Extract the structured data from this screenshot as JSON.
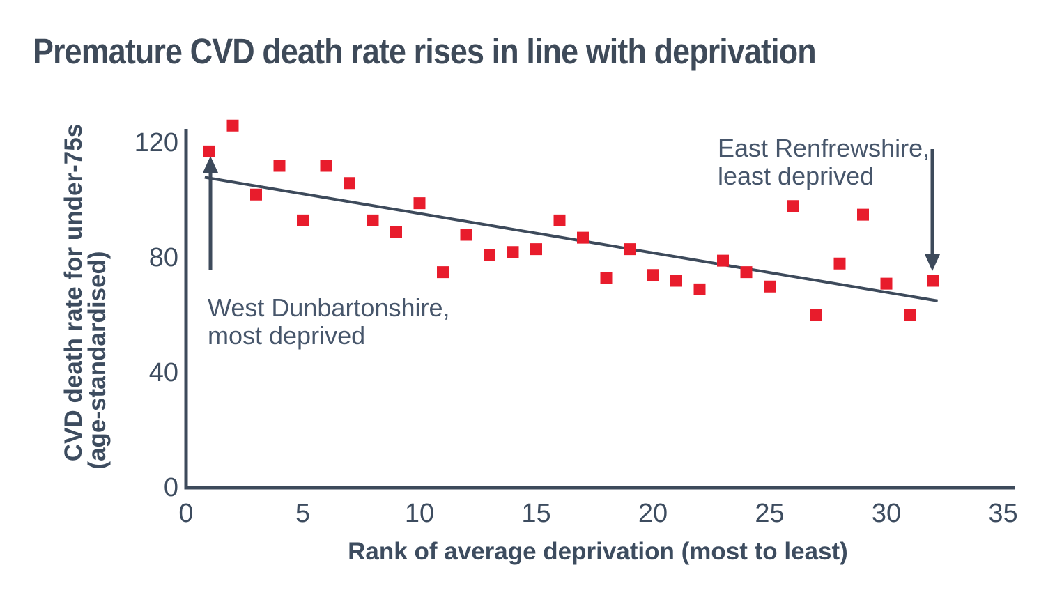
{
  "title": "Premature CVD death rate rises in line with deprivation",
  "chart_data": {
    "type": "scatter",
    "title": "Premature CVD death rate rises in line with deprivation",
    "xlabel": "Rank of average deprivation (most to least)",
    "ylabel": "CVD death rate for under-75s (age-standardised)",
    "ylabel_line1": "CVD death rate for under-75s",
    "ylabel_line2": "(age-standardised)",
    "xlim": [
      0,
      35
    ],
    "ylim": [
      0,
      120
    ],
    "x_ticks": [
      0,
      5,
      10,
      15,
      20,
      25,
      30,
      35
    ],
    "y_ticks": [
      0,
      40,
      80,
      120
    ],
    "grid": false,
    "legend": false,
    "marker": "square",
    "marker_color": "#e81c2c",
    "axis_color": "#3d4a5b",
    "trendline_color": "#3d4a5b",
    "points": [
      {
        "rank": 1,
        "value": 117
      },
      {
        "rank": 2,
        "value": 126
      },
      {
        "rank": 3,
        "value": 102
      },
      {
        "rank": 4,
        "value": 112
      },
      {
        "rank": 5,
        "value": 93
      },
      {
        "rank": 6,
        "value": 112
      },
      {
        "rank": 7,
        "value": 106
      },
      {
        "rank": 8,
        "value": 93
      },
      {
        "rank": 9,
        "value": 89
      },
      {
        "rank": 10,
        "value": 99
      },
      {
        "rank": 11,
        "value": 75
      },
      {
        "rank": 12,
        "value": 88
      },
      {
        "rank": 13,
        "value": 81
      },
      {
        "rank": 14,
        "value": 82
      },
      {
        "rank": 15,
        "value": 83
      },
      {
        "rank": 16,
        "value": 93
      },
      {
        "rank": 17,
        "value": 87
      },
      {
        "rank": 18,
        "value": 73
      },
      {
        "rank": 19,
        "value": 83
      },
      {
        "rank": 20,
        "value": 74
      },
      {
        "rank": 21,
        "value": 72
      },
      {
        "rank": 22,
        "value": 69
      },
      {
        "rank": 23,
        "value": 79
      },
      {
        "rank": 24,
        "value": 75
      },
      {
        "rank": 25,
        "value": 70
      },
      {
        "rank": 26,
        "value": 98
      },
      {
        "rank": 27,
        "value": 60
      },
      {
        "rank": 28,
        "value": 78
      },
      {
        "rank": 29,
        "value": 95
      },
      {
        "rank": 30,
        "value": 71
      },
      {
        "rank": 31,
        "value": 60
      },
      {
        "rank": 32,
        "value": 72
      }
    ],
    "trendline": {
      "x1": 0.8,
      "y1": 108,
      "x2": 32.2,
      "y2": 65
    },
    "annotations": [
      {
        "line1": "West Dunbartonshire,",
        "line2": "most deprived",
        "points_to_rank": 1
      },
      {
        "line1": "East Renfrewshire,",
        "line2": "least deprived",
        "points_to_rank": 32
      }
    ]
  }
}
